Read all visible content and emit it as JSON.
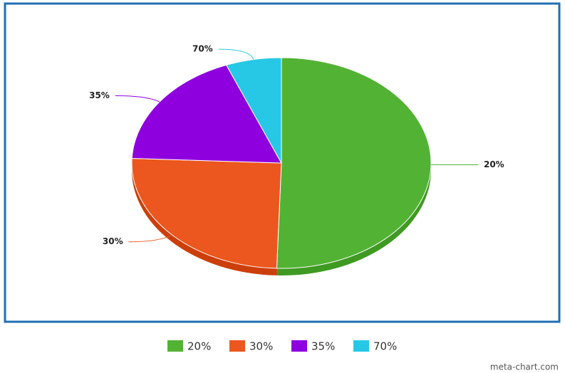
{
  "chart_data": {
    "type": "pie",
    "categories": [
      "20%",
      "30%",
      "35%",
      "70%"
    ],
    "values": [
      50.5,
      25.2,
      18.3,
      6.0
    ],
    "colors": [
      "#52b234",
      "#eb571e",
      "#8f00df",
      "#27c8e6"
    ],
    "side_colors": [
      "#3f9a22",
      "#cc3f0a",
      "#6d00aa",
      "#1ba3bd"
    ],
    "legend": "bottom",
    "source": "meta-chart.com"
  }
}
